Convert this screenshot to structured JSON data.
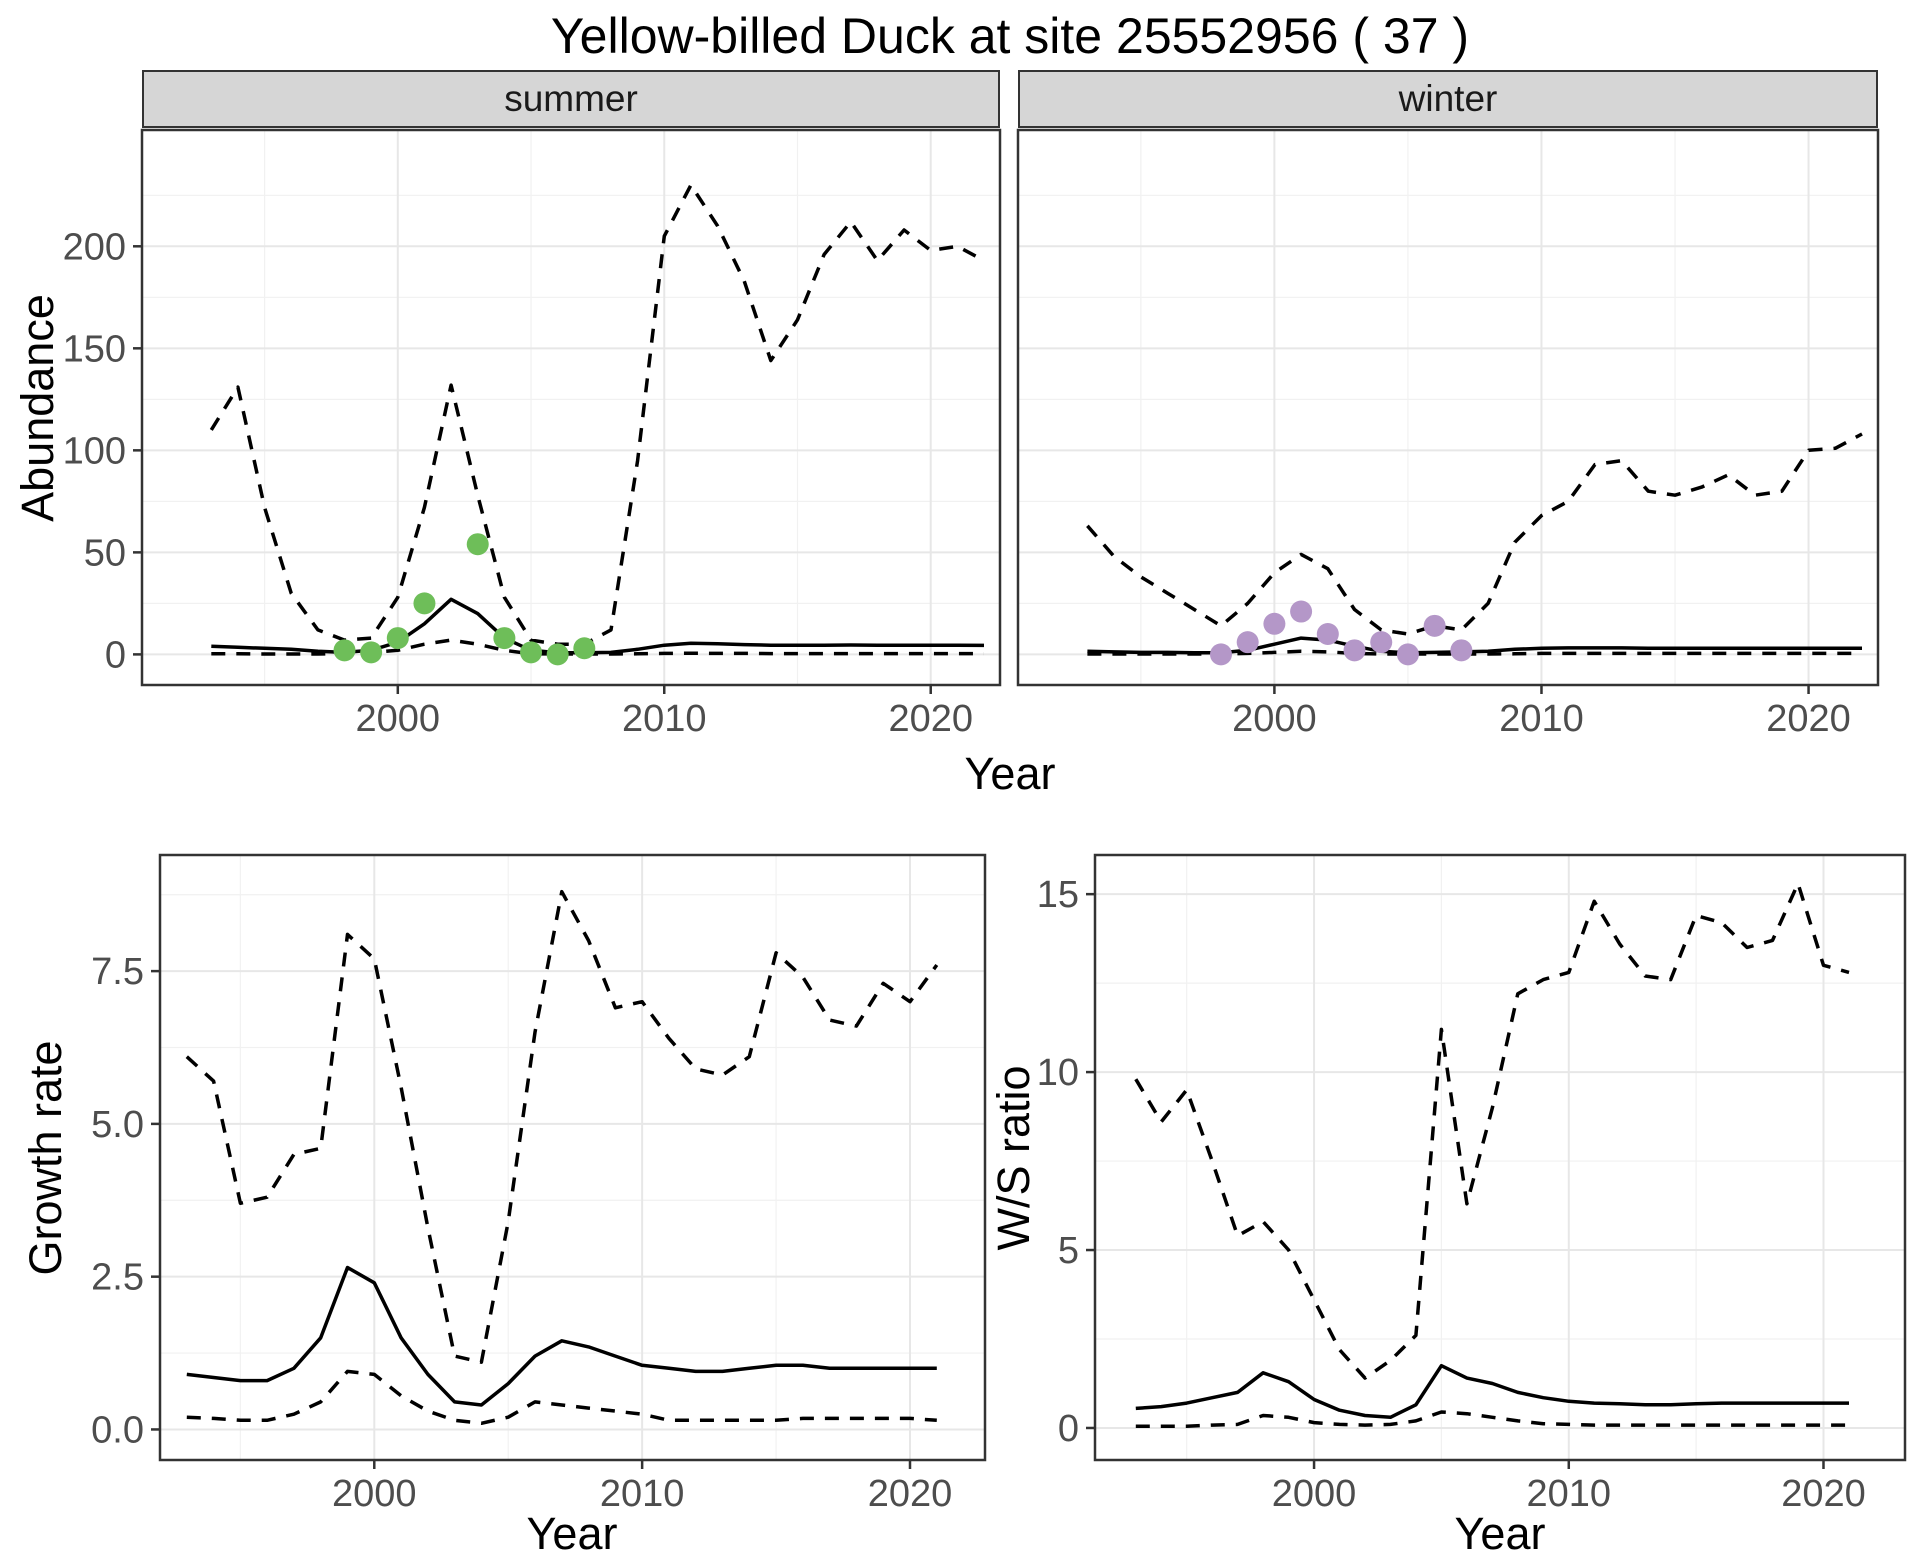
{
  "title": "Yellow-billed Duck at site 25552956 ( 37 )",
  "styles": {
    "line_color": "#000000",
    "panel_border": "#333333",
    "grid_major": "#e7e7e7",
    "grid_minor": "#f1f1f1",
    "strip_bg": "#d6d6d6",
    "tick_label_color": "#4d4d4d",
    "summer_point_color": "#6EBE59",
    "winter_point_color": "#B497C8"
  },
  "chart_data": [
    {
      "id": "abundance_summer",
      "type": "line",
      "facet_label": "summer",
      "ylabel": "Abundance",
      "xlabel": "Year",
      "xlim": [
        1990.4,
        2022.6
      ],
      "ylim": [
        -15,
        257
      ],
      "xticks": [
        2000,
        2010,
        2020
      ],
      "xtick_labels": [
        "2000",
        "2010",
        "2020"
      ],
      "yticks": [
        0,
        50,
        100,
        150,
        200
      ],
      "ytick_labels": [
        "0",
        "50",
        "100",
        "150",
        "200"
      ],
      "x": [
        1993,
        1994,
        1995,
        1996,
        1997,
        1998,
        1999,
        2000,
        2001,
        2002,
        2003,
        2004,
        2005,
        2006,
        2007,
        2008,
        2009,
        2010,
        2011,
        2012,
        2013,
        2014,
        2015,
        2016,
        2017,
        2018,
        2019,
        2020,
        2021,
        2022
      ],
      "series": [
        {
          "name": "median",
          "linetype": "solid",
          "values": [
            4,
            3.5,
            3,
            2.5,
            1.5,
            1,
            2,
            6,
            15,
            27,
            20,
            8,
            2,
            0.8,
            0.8,
            1,
            2.5,
            4.5,
            5.5,
            5.2,
            4.8,
            4.5,
            4.5,
            4.5,
            4.6,
            4.5,
            4.5,
            4.5,
            4.5,
            4.4
          ]
        },
        {
          "name": "upper_ci",
          "linetype": "dashed",
          "values": [
            110,
            131,
            72,
            30,
            12,
            7,
            8,
            28,
            72,
            132,
            78,
            28,
            7,
            5,
            5,
            12,
            95,
            205,
            230,
            210,
            183,
            144,
            164,
            196,
            212,
            193,
            208,
            198,
            200,
            193
          ]
        },
        {
          "name": "lower_ci",
          "linetype": "dashed",
          "values": [
            0.3,
            0.3,
            0.2,
            0.2,
            0.2,
            0.5,
            1,
            2,
            5,
            7,
            5,
            2,
            0.3,
            0.2,
            0.2,
            0.2,
            0.3,
            0.5,
            0.6,
            0.5,
            0.5,
            0.4,
            0.4,
            0.4,
            0.4,
            0.4,
            0.4,
            0.4,
            0.4,
            0.4
          ]
        }
      ],
      "points": {
        "name": "summer_counts",
        "color": "#6EBE59",
        "x": [
          1998,
          1999,
          2000,
          2001,
          2003,
          2004,
          2005,
          2006,
          2007
        ],
        "y": [
          2,
          1,
          8,
          25,
          54,
          8,
          1,
          0,
          3
        ]
      }
    },
    {
      "id": "abundance_winter",
      "type": "line",
      "facet_label": "winter",
      "ylabel": "Abundance",
      "xlabel": "Year",
      "xlim": [
        1990.4,
        2022.6
      ],
      "ylim": [
        -15,
        257
      ],
      "xticks": [
        2000,
        2010,
        2020
      ],
      "xtick_labels": [
        "2000",
        "2010",
        "2020"
      ],
      "yticks": [
        0,
        50,
        100,
        150,
        200
      ],
      "ytick_labels": [
        "0",
        "50",
        "100",
        "150",
        "200"
      ],
      "x": [
        1993,
        1994,
        1995,
        1996,
        1997,
        1998,
        1999,
        2000,
        2001,
        2002,
        2003,
        2004,
        2005,
        2006,
        2007,
        2008,
        2009,
        2010,
        2011,
        2012,
        2013,
        2014,
        2015,
        2016,
        2017,
        2018,
        2019,
        2020,
        2021,
        2022
      ],
      "series": [
        {
          "name": "median",
          "linetype": "solid",
          "values": [
            1.5,
            1.2,
            1,
            1,
            0.8,
            0.8,
            2,
            5,
            8,
            7,
            4,
            1.5,
            0.8,
            1,
            1.2,
            1.5,
            2.5,
            3,
            3.2,
            3.2,
            3.2,
            3,
            3,
            3,
            3,
            3,
            3,
            3,
            3,
            3
          ]
        },
        {
          "name": "upper_ci",
          "linetype": "dashed",
          "values": [
            63,
            48,
            38,
            30,
            22,
            14,
            25,
            40,
            49,
            42,
            22,
            12,
            10,
            14,
            12,
            25,
            55,
            68,
            75,
            93,
            95,
            80,
            78,
            82,
            88,
            78,
            80,
            100,
            101,
            108
          ]
        },
        {
          "name": "lower_ci",
          "linetype": "dashed",
          "values": [
            0.2,
            0.2,
            0.2,
            0.2,
            0.2,
            0.2,
            0.5,
            1,
            1.5,
            1.2,
            0.5,
            0.2,
            0.2,
            0.2,
            0.2,
            0.2,
            0.3,
            0.5,
            0.5,
            0.5,
            0.5,
            0.5,
            0.5,
            0.5,
            0.5,
            0.5,
            0.5,
            0.5,
            0.5,
            0.5
          ]
        }
      ],
      "points": {
        "name": "winter_counts",
        "color": "#B497C8",
        "x": [
          1998,
          1999,
          2000,
          2001,
          2002,
          2003,
          2004,
          2005,
          2006,
          2007
        ],
        "y": [
          0,
          6,
          15,
          21,
          10,
          2,
          6,
          0,
          14,
          2
        ]
      }
    },
    {
      "id": "growth_rate",
      "type": "line",
      "ylabel": "Growth rate",
      "xlabel": "Year",
      "xlim": [
        1992,
        2022.8
      ],
      "ylim": [
        -0.5,
        9.4
      ],
      "xticks": [
        2000,
        2010,
        2020
      ],
      "xtick_labels": [
        "2000",
        "2010",
        "2020"
      ],
      "yticks": [
        0,
        2.5,
        5,
        7.5
      ],
      "ytick_labels": [
        "0.0",
        "2.5",
        "5.0",
        "7.5"
      ],
      "x": [
        1993,
        1994,
        1995,
        1996,
        1997,
        1998,
        1999,
        2000,
        2001,
        2002,
        2003,
        2004,
        2005,
        2006,
        2007,
        2008,
        2009,
        2010,
        2011,
        2012,
        2013,
        2014,
        2015,
        2016,
        2017,
        2018,
        2019,
        2020,
        2021
      ],
      "series": [
        {
          "name": "median",
          "linetype": "solid",
          "values": [
            0.9,
            0.85,
            0.8,
            0.8,
            1.0,
            1.5,
            2.65,
            2.4,
            1.5,
            0.9,
            0.45,
            0.4,
            0.75,
            1.2,
            1.45,
            1.35,
            1.2,
            1.05,
            1.0,
            0.95,
            0.95,
            1.0,
            1.05,
            1.05,
            1.0,
            1.0,
            1.0,
            1.0,
            1.0
          ]
        },
        {
          "name": "upper_ci",
          "linetype": "dashed",
          "values": [
            6.1,
            5.7,
            3.7,
            3.8,
            4.5,
            4.6,
            8.1,
            7.7,
            5.6,
            3.3,
            1.2,
            1.1,
            3.4,
            6.5,
            8.8,
            8.0,
            6.9,
            7.0,
            6.4,
            5.9,
            5.8,
            6.1,
            7.8,
            7.4,
            6.7,
            6.6,
            7.3,
            7.0,
            7.6
          ]
        },
        {
          "name": "lower_ci",
          "linetype": "dashed",
          "values": [
            0.2,
            0.18,
            0.15,
            0.15,
            0.25,
            0.45,
            0.95,
            0.9,
            0.55,
            0.3,
            0.15,
            0.1,
            0.2,
            0.45,
            0.4,
            0.35,
            0.3,
            0.25,
            0.15,
            0.15,
            0.15,
            0.15,
            0.15,
            0.18,
            0.18,
            0.18,
            0.18,
            0.18,
            0.15
          ]
        }
      ]
    },
    {
      "id": "ws_ratio",
      "type": "line",
      "ylabel": "W/S ratio",
      "xlabel": "Year",
      "xlim": [
        1991.4,
        2023.2
      ],
      "ylim": [
        -0.9,
        16.1
      ],
      "xticks": [
        2000,
        2010,
        2020
      ],
      "xtick_labels": [
        "2000",
        "2010",
        "2020"
      ],
      "yticks": [
        0,
        5,
        10,
        15
      ],
      "ytick_labels": [
        "0",
        "5",
        "10",
        "15"
      ],
      "x": [
        1993,
        1994,
        1995,
        1996,
        1997,
        1998,
        1999,
        2000,
        2001,
        2002,
        2003,
        2004,
        2005,
        2006,
        2007,
        2008,
        2009,
        2010,
        2011,
        2012,
        2013,
        2014,
        2015,
        2016,
        2017,
        2018,
        2019,
        2020,
        2021
      ],
      "series": [
        {
          "name": "median",
          "linetype": "solid",
          "values": [
            0.55,
            0.6,
            0.7,
            0.85,
            1.0,
            1.55,
            1.3,
            0.8,
            0.5,
            0.35,
            0.3,
            0.65,
            1.75,
            1.4,
            1.25,
            1.0,
            0.85,
            0.75,
            0.7,
            0.68,
            0.65,
            0.65,
            0.68,
            0.7,
            0.7,
            0.7,
            0.7,
            0.7,
            0.7
          ]
        },
        {
          "name": "upper_ci",
          "linetype": "dashed",
          "values": [
            9.8,
            8.6,
            9.5,
            7.5,
            5.4,
            5.8,
            5.0,
            3.6,
            2.2,
            1.4,
            1.9,
            2.6,
            11.2,
            6.3,
            9.0,
            12.2,
            12.6,
            12.8,
            14.8,
            13.6,
            12.7,
            12.6,
            14.4,
            14.2,
            13.5,
            13.7,
            15.3,
            13.0,
            12.8
          ]
        },
        {
          "name": "lower_ci",
          "linetype": "dashed",
          "values": [
            0.05,
            0.05,
            0.05,
            0.08,
            0.1,
            0.35,
            0.3,
            0.15,
            0.1,
            0.08,
            0.1,
            0.2,
            0.45,
            0.4,
            0.3,
            0.2,
            0.12,
            0.1,
            0.08,
            0.08,
            0.08,
            0.08,
            0.08,
            0.08,
            0.08,
            0.08,
            0.08,
            0.08,
            0.08
          ]
        }
      ]
    }
  ]
}
